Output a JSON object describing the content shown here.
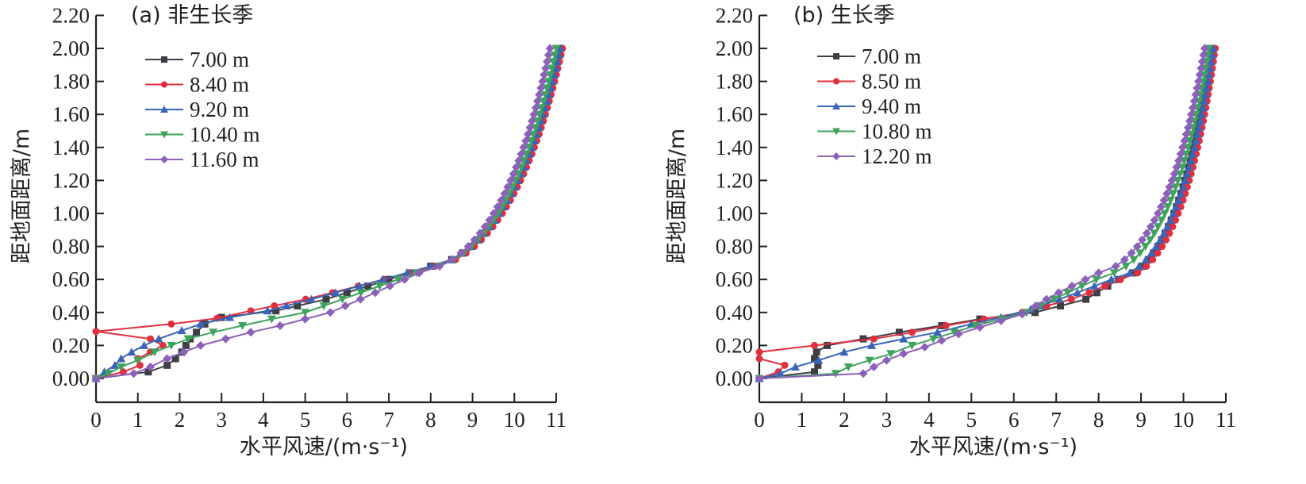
{
  "chart_data": [
    {
      "type": "line",
      "panel_id": "a",
      "title": "(a) 非生长季",
      "xlabel": "水平风速/(m·s⁻¹)",
      "ylabel": "距地面距离/m",
      "xlim": [
        0,
        11
      ],
      "ylim": [
        0,
        2.2
      ],
      "x_ticks": [
        "0",
        "1",
        "2",
        "3",
        "4",
        "5",
        "6",
        "7",
        "8",
        "9",
        "10",
        "11"
      ],
      "y_ticks": [
        "0.00",
        "0.20",
        "0.40",
        "0.60",
        "0.80",
        "1.00",
        "1.20",
        "1.40",
        "1.60",
        "1.80",
        "2.00",
        "2.20"
      ],
      "grid": false,
      "legend_position": "top-left",
      "profile_upper": {
        "z_start": 0.4,
        "z_end": 2.0,
        "step": 0.04
      },
      "series": [
        {
          "name": "7.00 m",
          "color": "#3d3f45",
          "marker": "square",
          "low_points": [
            [
              0,
              0
            ],
            [
              1.25,
              0.04
            ],
            [
              1.7,
              0.08
            ],
            [
              1.9,
              0.12
            ],
            [
              2.05,
              0.16
            ],
            [
              2.15,
              0.2
            ],
            [
              2.25,
              0.24
            ],
            [
              2.4,
              0.28
            ],
            [
              2.6,
              0.33
            ],
            [
              3.0,
              0.37
            ],
            [
              4.3,
              0.41
            ]
          ],
          "u_top": 11.1,
          "u_knee": 8.0,
          "z_knee": 0.68,
          "u_mid": 5.5,
          "z_mid": 0.48
        },
        {
          "name": "8.40 m",
          "color": "#e0303f",
          "marker": "circle",
          "low_points": [
            [
              0,
              0
            ],
            [
              0.65,
              0.04
            ],
            [
              1.05,
              0.08
            ],
            [
              1.0,
              0.12
            ],
            [
              1.3,
              0.16
            ],
            [
              1.6,
              0.2
            ],
            [
              1.3,
              0.24
            ],
            [
              0,
              0.285
            ],
            [
              1.8,
              0.33
            ],
            [
              2.9,
              0.365
            ],
            [
              3.7,
              0.41
            ]
          ],
          "u_top": 11.15,
          "u_knee": 8.1,
          "z_knee": 0.68,
          "u_mid": 5.2,
          "z_mid": 0.49
        },
        {
          "name": "9.20 m",
          "color": "#3a64b7",
          "marker": "triangle-up",
          "low_points": [
            [
              0,
              0
            ],
            [
              0.2,
              0.04
            ],
            [
              0.45,
              0.08
            ],
            [
              0.6,
              0.12
            ],
            [
              0.85,
              0.16
            ],
            [
              1.15,
              0.2
            ],
            [
              1.5,
              0.24
            ],
            [
              2.05,
              0.29
            ],
            [
              2.5,
              0.33
            ],
            [
              3.2,
              0.37
            ],
            [
              4.1,
              0.41
            ]
          ],
          "u_top": 11.1,
          "u_knee": 8.0,
          "z_knee": 0.68,
          "u_mid": 5.3,
          "z_mid": 0.49
        },
        {
          "name": "10.40 m",
          "color": "#3ea35c",
          "marker": "triangle-down",
          "low_points": [
            [
              0,
              0
            ],
            [
              0.3,
              0.03
            ],
            [
              0.6,
              0.07
            ],
            [
              1.0,
              0.11
            ],
            [
              1.4,
              0.16
            ],
            [
              1.8,
              0.2
            ],
            [
              2.2,
              0.24
            ],
            [
              2.8,
              0.28
            ],
            [
              3.5,
              0.32
            ],
            [
              4.2,
              0.36
            ],
            [
              5.0,
              0.4
            ]
          ],
          "u_top": 11.0,
          "u_knee": 8.0,
          "z_knee": 0.67,
          "u_mid": 6.0,
          "z_mid": 0.49
        },
        {
          "name": "11.60 m",
          "color": "#8c61b8",
          "marker": "diamond",
          "low_points": [
            [
              0,
              0
            ],
            [
              0.9,
              0.03
            ],
            [
              1.3,
              0.07
            ],
            [
              1.7,
              0.12
            ],
            [
              2.1,
              0.16
            ],
            [
              2.5,
              0.2
            ],
            [
              3.1,
              0.24
            ],
            [
              3.7,
              0.28
            ],
            [
              4.4,
              0.32
            ],
            [
              5.0,
              0.36
            ],
            [
              5.6,
              0.4
            ]
          ],
          "u_top": 10.85,
          "u_knee": 7.9,
          "z_knee": 0.66,
          "u_mid": 6.5,
          "z_mid": 0.5
        }
      ]
    },
    {
      "type": "line",
      "panel_id": "b",
      "title": "(b) 生长季",
      "xlabel": "水平风速/(m·s⁻¹)",
      "ylabel": "距地面距离/m",
      "xlim": [
        0,
        11
      ],
      "ylim": [
        0,
        2.2
      ],
      "x_ticks": [
        "0",
        "1",
        "2",
        "3",
        "4",
        "5",
        "6",
        "7",
        "8",
        "9",
        "10",
        "11"
      ],
      "y_ticks": [
        "0.00",
        "0.20",
        "0.40",
        "0.60",
        "0.80",
        "1.00",
        "1.20",
        "1.40",
        "1.60",
        "1.80",
        "2.00",
        "2.20"
      ],
      "grid": false,
      "legend_position": "top-left",
      "profile_upper": {
        "z_start": 0.4,
        "z_end": 2.0,
        "step": 0.04
      },
      "series": [
        {
          "name": "7.00 m",
          "color": "#3d3f45",
          "marker": "square",
          "low_points": [
            [
              0,
              0
            ],
            [
              1.3,
              0.04
            ],
            [
              1.38,
              0.08
            ],
            [
              1.3,
              0.12
            ],
            [
              1.35,
              0.16
            ],
            [
              1.6,
              0.2
            ],
            [
              2.45,
              0.24
            ],
            [
              3.3,
              0.28
            ],
            [
              4.3,
              0.32
            ],
            [
              5.2,
              0.36
            ],
            [
              6.5,
              0.4
            ]
          ],
          "u_top": 10.65,
          "u_knee": 8.6,
          "z_knee": 0.62,
          "u_mid": 7.7,
          "z_mid": 0.48
        },
        {
          "name": "8.50 m",
          "color": "#e0303f",
          "marker": "circle",
          "low_points": [
            [
              0,
              0
            ],
            [
              0.45,
              0.04
            ],
            [
              0.6,
              0.08
            ],
            [
              0,
              0.12
            ],
            [
              0,
              0.16
            ],
            [
              1.3,
              0.2
            ],
            [
              2.7,
              0.24
            ],
            [
              3.6,
              0.28
            ],
            [
              4.4,
              0.32
            ],
            [
              5.3,
              0.36
            ],
            [
              6.2,
              0.4
            ]
          ],
          "u_top": 10.75,
          "u_knee": 8.7,
          "z_knee": 0.62,
          "u_mid": 7.5,
          "z_mid": 0.49
        },
        {
          "name": "9.40 m",
          "color": "#3a64b7",
          "marker": "triangle-up",
          "low_points": [
            [
              0,
              0
            ],
            [
              0.5,
              0.03
            ],
            [
              0.85,
              0.07
            ],
            [
              1.4,
              0.11
            ],
            [
              2.0,
              0.16
            ],
            [
              2.65,
              0.2
            ],
            [
              3.4,
              0.24
            ],
            [
              4.2,
              0.28
            ],
            [
              5.0,
              0.33
            ],
            [
              5.7,
              0.37
            ],
            [
              6.4,
              0.42
            ]
          ],
          "u_top": 10.7,
          "u_knee": 8.5,
          "z_knee": 0.62,
          "u_mid": 7.3,
          "z_mid": 0.5
        },
        {
          "name": "10.80 m",
          "color": "#3ea35c",
          "marker": "triangle-down",
          "low_points": [
            [
              0,
              0
            ],
            [
              1.8,
              0.03
            ],
            [
              2.1,
              0.07
            ],
            [
              2.6,
              0.11
            ],
            [
              3.1,
              0.15
            ],
            [
              3.6,
              0.2
            ],
            [
              4.1,
              0.24
            ],
            [
              4.6,
              0.28
            ],
            [
              5.1,
              0.32
            ],
            [
              5.7,
              0.36
            ],
            [
              6.3,
              0.4
            ]
          ],
          "u_top": 10.6,
          "u_knee": 8.2,
          "z_knee": 0.63,
          "u_mid": 7.1,
          "z_mid": 0.5
        },
        {
          "name": "12.20 m",
          "color": "#8c61b8",
          "marker": "diamond",
          "low_points": [
            [
              0,
              0
            ],
            [
              2.45,
              0.03
            ],
            [
              2.7,
              0.07
            ],
            [
              3.0,
              0.11
            ],
            [
              3.4,
              0.15
            ],
            [
              3.9,
              0.19
            ],
            [
              4.3,
              0.23
            ],
            [
              4.7,
              0.27
            ],
            [
              5.2,
              0.31
            ],
            [
              5.7,
              0.35
            ],
            [
              6.2,
              0.39
            ]
          ],
          "u_top": 10.5,
          "u_knee": 8.0,
          "z_knee": 0.64,
          "u_mid": 6.9,
          "z_mid": 0.5
        }
      ]
    }
  ]
}
